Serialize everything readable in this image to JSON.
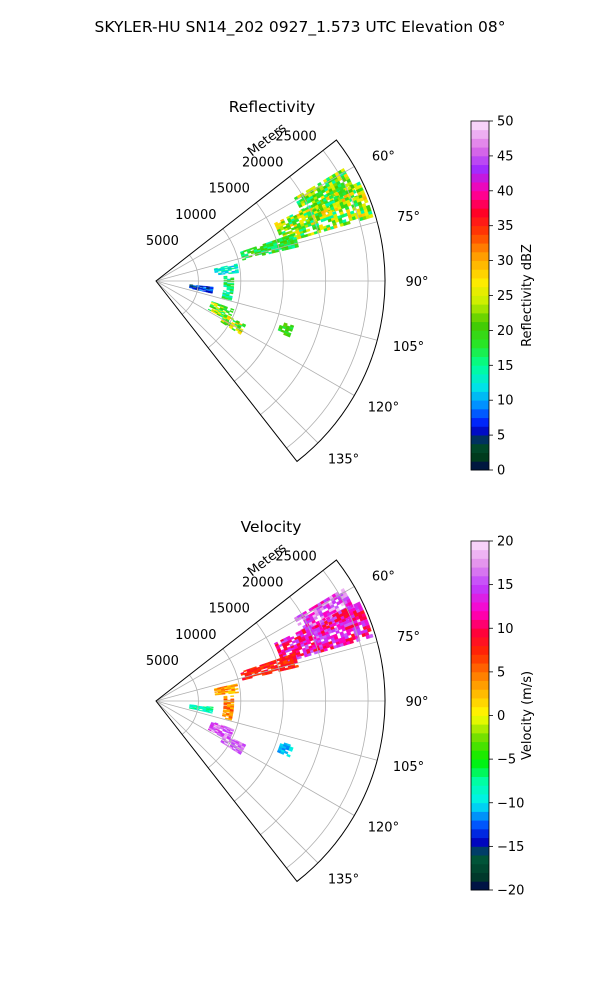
{
  "figure": {
    "suptitle": "SKYLER-HU  SN14_202  0927_1.573 UTC Elevation 08°"
  },
  "chart_data": [
    {
      "type": "heatmap",
      "projection": "polar-sector",
      "title": "Reflectivity",
      "range_axis_label": "Meters",
      "range_ticks": [
        "5000",
        "10000",
        "15000",
        "20000",
        "25000"
      ],
      "range_tick_values": [
        5000,
        10000,
        15000,
        20000,
        25000
      ],
      "range_lim": [
        0,
        27000
      ],
      "azimuth_lim": [
        52,
        142
      ],
      "azimuth_ticks": [
        "60°",
        "75°",
        "90°",
        "105°",
        "120°",
        "135°"
      ],
      "azimuth_tick_values": [
        60,
        75,
        90,
        105,
        120,
        135
      ],
      "grid": true,
      "colorbar": {
        "label": "Reflectivity dBZ",
        "min": 0,
        "max": 50,
        "ticks": [
          "0",
          "5",
          "10",
          "15",
          "20",
          "25",
          "30",
          "35",
          "40",
          "45",
          "50"
        ],
        "tick_values": [
          0,
          5,
          10,
          15,
          20,
          25,
          30,
          35,
          40,
          45,
          50
        ]
      },
      "echo_regions": [
        {
          "az": [
            59,
            68
          ],
          "range": [
            19000,
            25500
          ],
          "value_range": [
            14,
            28
          ]
        },
        {
          "az": [
            64,
            73
          ],
          "range": [
            15500,
            26500
          ],
          "value_range": [
            14,
            30
          ]
        },
        {
          "az": [
            71,
            76
          ],
          "range": [
            10500,
            17000
          ],
          "value_range": [
            14,
            22
          ]
        },
        {
          "az": [
            78,
            84
          ],
          "range": [
            7000,
            9500
          ],
          "value_range": [
            10,
            16
          ]
        },
        {
          "az": [
            86,
            104
          ],
          "range": [
            8000,
            9000
          ],
          "value_range": [
            12,
            20
          ]
        },
        {
          "az": [
            96,
            102
          ],
          "range": [
            4000,
            6500
          ],
          "value_range": [
            3,
            10
          ]
        },
        {
          "az": [
            110,
            118
          ],
          "range": [
            7000,
            9500
          ],
          "value_range": [
            15,
            28
          ]
        },
        {
          "az": [
            116,
            122
          ],
          "range": [
            9000,
            11500
          ],
          "value_range": [
            16,
            30
          ]
        },
        {
          "az": [
            108,
            112
          ],
          "range": [
            15500,
            17000
          ],
          "value_range": [
            17,
            22
          ]
        }
      ]
    },
    {
      "type": "heatmap",
      "projection": "polar-sector",
      "title": "Velocity",
      "range_axis_label": "Meters",
      "range_ticks": [
        "5000",
        "10000",
        "15000",
        "20000",
        "25000"
      ],
      "range_tick_values": [
        5000,
        10000,
        15000,
        20000,
        25000
      ],
      "range_lim": [
        0,
        27000
      ],
      "azimuth_lim": [
        52,
        142
      ],
      "azimuth_ticks": [
        "60°",
        "75°",
        "90°",
        "105°",
        "120°",
        "135°"
      ],
      "azimuth_tick_values": [
        60,
        75,
        90,
        105,
        120,
        135
      ],
      "grid": true,
      "colorbar": {
        "label": "Velocity (m/s)",
        "min": -20,
        "max": 20,
        "ticks": [
          "−20",
          "−15",
          "−10",
          "−5",
          "0",
          "5",
          "10",
          "15",
          "20"
        ],
        "tick_values": [
          -20,
          -15,
          -10,
          -5,
          0,
          5,
          10,
          15,
          20
        ]
      },
      "echo_regions": [
        {
          "az": [
            59,
            68
          ],
          "range": [
            19000,
            25500
          ],
          "value_range": [
            11,
            19
          ]
        },
        {
          "az": [
            64,
            73
          ],
          "range": [
            15500,
            26500
          ],
          "value_range": [
            8,
            16
          ]
        },
        {
          "az": [
            71,
            76
          ],
          "range": [
            10500,
            17000
          ],
          "value_range": [
            6,
            10
          ]
        },
        {
          "az": [
            78,
            84
          ],
          "range": [
            7000,
            9500
          ],
          "value_range": [
            1,
            6
          ]
        },
        {
          "az": [
            86,
            104
          ],
          "range": [
            8000,
            9000
          ],
          "value_range": [
            2,
            7
          ]
        },
        {
          "az": [
            96,
            102
          ],
          "range": [
            4000,
            6500
          ],
          "value_range": [
            -10,
            -6
          ]
        },
        {
          "az": [
            110,
            118
          ],
          "range": [
            7000,
            9500
          ],
          "value_range": [
            13,
            18
          ]
        },
        {
          "az": [
            116,
            122
          ],
          "range": [
            9000,
            11500
          ],
          "value_range": [
            14,
            18
          ]
        },
        {
          "az": [
            108,
            112
          ],
          "range": [
            15500,
            17000
          ],
          "value_range": [
            -12,
            -9
          ]
        }
      ]
    }
  ]
}
